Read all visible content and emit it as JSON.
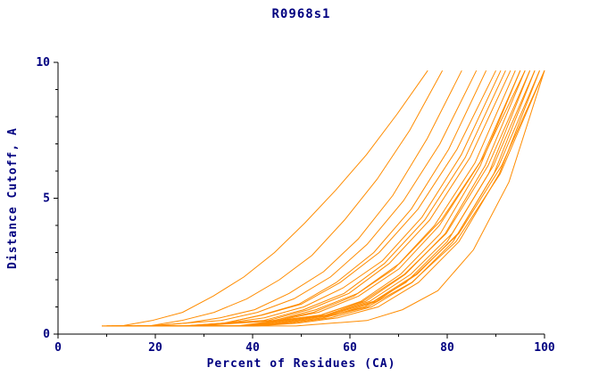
{
  "colors": {
    "background": "#ffffff",
    "line": "#ff8c00",
    "axis": "#000000",
    "text": "#000080"
  },
  "chart_data": {
    "type": "line",
    "title": "R0968s1",
    "xlabel": "Percent of Residues (CA)",
    "ylabel": "Distance Cutoff, A",
    "xlim": [
      0,
      100
    ],
    "ylim": [
      0,
      10
    ],
    "x_major_ticks": [
      0,
      20,
      40,
      60,
      80,
      100
    ],
    "x_minor_step": 10,
    "y_major_ticks": [
      0,
      5,
      10
    ],
    "y_minor_step": 1,
    "grid": false,
    "legend": "none",
    "line_color": "#ff8c00",
    "axis_color": "#000000",
    "text_color": "#000080",
    "series": [
      [
        [
          13,
          0.3
        ],
        [
          19.3,
          0.5
        ],
        [
          25.6,
          0.8
        ],
        [
          31.9,
          1.4
        ],
        [
          38.2,
          2.1
        ],
        [
          44.5,
          3.0
        ],
        [
          50.8,
          4.1
        ],
        [
          57.1,
          5.3
        ],
        [
          63.4,
          6.6
        ],
        [
          69.7,
          8.1
        ],
        [
          76,
          9.7
        ]
      ],
      [
        [
          12,
          0.3
        ],
        [
          18.7,
          0.3
        ],
        [
          25.4,
          0.5
        ],
        [
          32.1,
          0.8
        ],
        [
          38.8,
          1.3
        ],
        [
          45.5,
          2.0
        ],
        [
          52.2,
          2.9
        ],
        [
          58.9,
          4.2
        ],
        [
          65.6,
          5.7
        ],
        [
          72.3,
          7.5
        ],
        [
          79,
          9.7
        ]
      ],
      [
        [
          12,
          0.3
        ],
        [
          19.1,
          0.3
        ],
        [
          26.2,
          0.4
        ],
        [
          33.3,
          0.6
        ],
        [
          40.4,
          0.9
        ],
        [
          47.5,
          1.5
        ],
        [
          54.6,
          2.3
        ],
        [
          61.7,
          3.5
        ],
        [
          68.8,
          5.1
        ],
        [
          75.9,
          7.2
        ],
        [
          83,
          9.7
        ]
      ],
      [
        [
          11,
          0.3
        ],
        [
          18.5,
          0.3
        ],
        [
          26,
          0.4
        ],
        [
          33.5,
          0.5
        ],
        [
          41,
          0.8
        ],
        [
          48.5,
          1.3
        ],
        [
          56,
          2.1
        ],
        [
          63.5,
          3.3
        ],
        [
          71,
          4.9
        ],
        [
          78.5,
          7.0
        ],
        [
          86,
          9.7
        ]
      ],
      [
        [
          11,
          0.3
        ],
        [
          18.7,
          0.3
        ],
        [
          26.4,
          0.3
        ],
        [
          34.1,
          0.4
        ],
        [
          41.8,
          0.7
        ],
        [
          49.5,
          1.1
        ],
        [
          57.2,
          1.9
        ],
        [
          64.9,
          3.0
        ],
        [
          72.6,
          4.6
        ],
        [
          80.3,
          6.8
        ],
        [
          88,
          9.7
        ]
      ],
      [
        [
          10,
          0.3
        ],
        [
          18,
          0.3
        ],
        [
          26,
          0.3
        ],
        [
          34,
          0.4
        ],
        [
          42,
          0.7
        ],
        [
          50,
          1.1
        ],
        [
          58,
          1.9
        ],
        [
          66,
          3.0
        ],
        [
          74,
          4.6
        ],
        [
          82,
          6.8
        ],
        [
          90,
          9.7
        ]
      ],
      [
        [
          10,
          0.3
        ],
        [
          18.1,
          0.3
        ],
        [
          26.2,
          0.3
        ],
        [
          34.3,
          0.4
        ],
        [
          42.4,
          0.6
        ],
        [
          50.5,
          1.0
        ],
        [
          58.6,
          1.7
        ],
        [
          66.7,
          2.7
        ],
        [
          74.8,
          4.3
        ],
        [
          82.9,
          6.6
        ],
        [
          91,
          9.7
        ]
      ],
      [
        [
          9,
          0.3
        ],
        [
          17.3,
          0.3
        ],
        [
          25.6,
          0.3
        ],
        [
          33.9,
          0.4
        ],
        [
          42.2,
          0.5
        ],
        [
          50.5,
          0.9
        ],
        [
          58.8,
          1.5
        ],
        [
          67.1,
          2.6
        ],
        [
          75.4,
          4.2
        ],
        [
          83.7,
          6.5
        ],
        [
          92,
          9.7
        ]
      ],
      [
        [
          10,
          0.3
        ],
        [
          18.3,
          0.3
        ],
        [
          26.6,
          0.3
        ],
        [
          34.9,
          0.4
        ],
        [
          43.2,
          0.5
        ],
        [
          51.5,
          0.9
        ],
        [
          59.8,
          1.5
        ],
        [
          68.1,
          2.6
        ],
        [
          76.4,
          4.2
        ],
        [
          84.7,
          6.5
        ],
        [
          93,
          9.7
        ]
      ],
      [
        [
          11,
          0.3
        ],
        [
          19.3,
          0.3
        ],
        [
          27.6,
          0.3
        ],
        [
          35.9,
          0.4
        ],
        [
          44.2,
          0.5
        ],
        [
          52.5,
          0.8
        ],
        [
          60.8,
          1.4
        ],
        [
          69.1,
          2.4
        ],
        [
          77.4,
          4.0
        ],
        [
          85.7,
          6.3
        ],
        [
          94,
          9.7
        ]
      ],
      [
        [
          12,
          0.3
        ],
        [
          20.3,
          0.3
        ],
        [
          28.6,
          0.3
        ],
        [
          36.9,
          0.4
        ],
        [
          45.2,
          0.5
        ],
        [
          53.5,
          0.8
        ],
        [
          61.8,
          1.4
        ],
        [
          70.1,
          2.4
        ],
        [
          78.4,
          4.0
        ],
        [
          86.7,
          6.3
        ],
        [
          95,
          9.7
        ]
      ],
      [
        [
          13,
          0.3
        ],
        [
          21.2,
          0.3
        ],
        [
          29.4,
          0.3
        ],
        [
          37.6,
          0.3
        ],
        [
          45.8,
          0.5
        ],
        [
          54,
          0.7
        ],
        [
          62.2,
          1.2
        ],
        [
          70.4,
          2.2
        ],
        [
          78.6,
          3.7
        ],
        [
          86.8,
          6.2
        ],
        [
          95,
          9.7
        ]
      ],
      [
        [
          14,
          0.3
        ],
        [
          22.2,
          0.3
        ],
        [
          30.4,
          0.3
        ],
        [
          38.6,
          0.3
        ],
        [
          46.8,
          0.5
        ],
        [
          55,
          0.7
        ],
        [
          63.2,
          1.2
        ],
        [
          71.4,
          2.2
        ],
        [
          79.6,
          3.7
        ],
        [
          87.8,
          6.2
        ],
        [
          96,
          9.7
        ]
      ],
      [
        [
          10,
          0.3
        ],
        [
          18.6,
          0.3
        ],
        [
          27.2,
          0.3
        ],
        [
          35.8,
          0.4
        ],
        [
          44.4,
          0.5
        ],
        [
          53,
          0.9
        ],
        [
          61.6,
          1.5
        ],
        [
          70.2,
          2.6
        ],
        [
          78.8,
          4.2
        ],
        [
          87.4,
          6.5
        ],
        [
          96,
          9.7
        ]
      ],
      [
        [
          11,
          0.3
        ],
        [
          19.6,
          0.3
        ],
        [
          28.2,
          0.3
        ],
        [
          36.8,
          0.3
        ],
        [
          45.4,
          0.5
        ],
        [
          54,
          0.7
        ],
        [
          62.6,
          1.2
        ],
        [
          71.2,
          2.2
        ],
        [
          79.8,
          3.7
        ],
        [
          88.4,
          6.2
        ],
        [
          97,
          9.7
        ]
      ],
      [
        [
          12,
          0.3
        ],
        [
          20.5,
          0.3
        ],
        [
          29,
          0.3
        ],
        [
          37.5,
          0.3
        ],
        [
          46,
          0.4
        ],
        [
          54.5,
          0.6
        ],
        [
          63,
          1.0
        ],
        [
          71.5,
          1.9
        ],
        [
          80,
          3.4
        ],
        [
          88.5,
          5.9
        ],
        [
          97,
          9.7
        ]
      ],
      [
        [
          13,
          0.3
        ],
        [
          21.5,
          0.3
        ],
        [
          30,
          0.3
        ],
        [
          38.5,
          0.3
        ],
        [
          47,
          0.5
        ],
        [
          55.5,
          0.7
        ],
        [
          64,
          1.2
        ],
        [
          72.5,
          2.2
        ],
        [
          81,
          3.7
        ],
        [
          89.5,
          6.2
        ],
        [
          98,
          9.7
        ]
      ],
      [
        [
          14,
          0.3
        ],
        [
          22.4,
          0.3
        ],
        [
          30.8,
          0.3
        ],
        [
          39.2,
          0.3
        ],
        [
          47.6,
          0.4
        ],
        [
          56,
          0.6
        ],
        [
          64.4,
          1.0
        ],
        [
          72.8,
          1.9
        ],
        [
          81.2,
          3.4
        ],
        [
          89.6,
          5.9
        ],
        [
          98,
          9.7
        ]
      ],
      [
        [
          15,
          0.3
        ],
        [
          23.4,
          0.3
        ],
        [
          31.8,
          0.3
        ],
        [
          40.2,
          0.3
        ],
        [
          48.6,
          0.5
        ],
        [
          57,
          0.7
        ],
        [
          65.4,
          1.2
        ],
        [
          73.8,
          2.2
        ],
        [
          82.2,
          3.7
        ],
        [
          90.6,
          6.2
        ],
        [
          99,
          9.7
        ]
      ],
      [
        [
          16,
          0.3
        ],
        [
          24.3,
          0.3
        ],
        [
          32.6,
          0.3
        ],
        [
          40.9,
          0.3
        ],
        [
          49.2,
          0.4
        ],
        [
          57.5,
          0.6
        ],
        [
          65.8,
          1.0
        ],
        [
          74.1,
          1.9
        ],
        [
          82.4,
          3.4
        ],
        [
          90.7,
          5.9
        ],
        [
          99,
          9.7
        ]
      ],
      [
        [
          12,
          0.3
        ],
        [
          20.8,
          0.3
        ],
        [
          29.6,
          0.3
        ],
        [
          38.4,
          0.3
        ],
        [
          47.2,
          0.5
        ],
        [
          56,
          0.7
        ],
        [
          64.8,
          1.2
        ],
        [
          73.6,
          2.2
        ],
        [
          82.4,
          3.7
        ],
        [
          91.2,
          6.2
        ],
        [
          100,
          9.7
        ]
      ],
      [
        [
          27,
          0.3
        ],
        [
          34.3,
          0.3
        ],
        [
          41.6,
          0.3
        ],
        [
          48.9,
          0.3
        ],
        [
          56.2,
          0.4
        ],
        [
          63.5,
          0.5
        ],
        [
          70.8,
          0.9
        ],
        [
          78.1,
          1.6
        ],
        [
          85.4,
          3.1
        ],
        [
          92.7,
          5.6
        ],
        [
          100,
          9.7
        ]
      ],
      [
        [
          9,
          0.3
        ],
        [
          18.1,
          0.3
        ],
        [
          27.2,
          0.3
        ],
        [
          36.3,
          0.3
        ],
        [
          45.4,
          0.4
        ],
        [
          54.5,
          0.6
        ],
        [
          63.6,
          1.0
        ],
        [
          72.7,
          1.9
        ],
        [
          81.8,
          3.4
        ],
        [
          90.9,
          5.9
        ],
        [
          100,
          9.7
        ]
      ]
    ]
  }
}
